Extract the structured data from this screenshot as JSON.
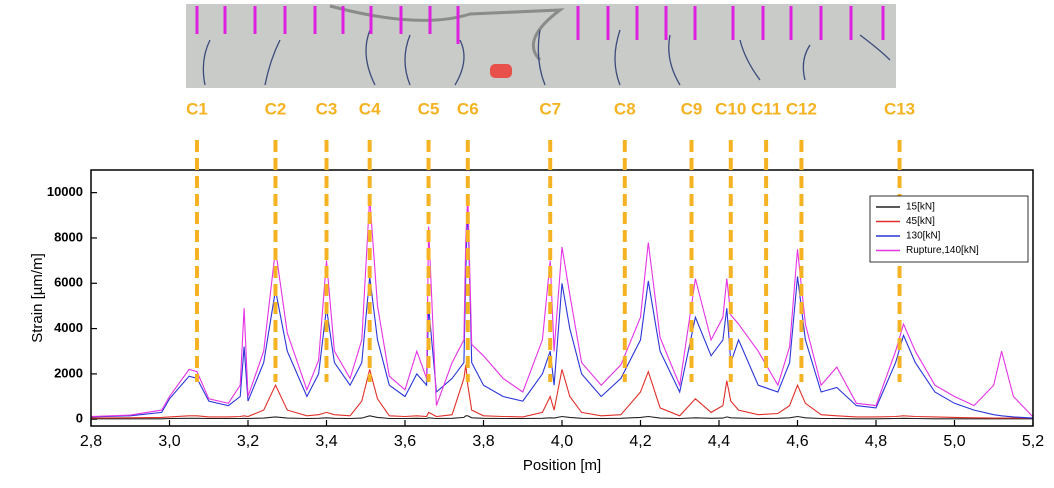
{
  "chart_data": {
    "type": "line",
    "xlabel": "Position [m]",
    "ylabel": "Strain [µm/m]",
    "xlim": [
      2.8,
      5.2
    ],
    "ylim": [
      -300,
      11000
    ],
    "xticks": [
      {
        "value": 2.8,
        "label": "2,8"
      },
      {
        "value": 3.0,
        "label": "3,0"
      },
      {
        "value": 3.2,
        "label": "3,2"
      },
      {
        "value": 3.4,
        "label": "3,4"
      },
      {
        "value": 3.6,
        "label": "3,6"
      },
      {
        "value": 3.8,
        "label": "3,8"
      },
      {
        "value": 4.0,
        "label": "4,0"
      },
      {
        "value": 4.2,
        "label": "4,2"
      },
      {
        "value": 4.4,
        "label": "4,4"
      },
      {
        "value": 4.6,
        "label": "4,6"
      },
      {
        "value": 4.8,
        "label": "4,8"
      },
      {
        "value": 5.0,
        "label": "5,0"
      },
      {
        "value": 5.2,
        "label": "5,2"
      }
    ],
    "yticks": [
      0,
      2000,
      4000,
      6000,
      8000,
      10000
    ],
    "legend": "upper right",
    "x": [
      2.8,
      2.9,
      2.98,
      3.0,
      3.05,
      3.07,
      3.1,
      3.15,
      3.18,
      3.19,
      3.2,
      3.24,
      3.27,
      3.3,
      3.35,
      3.38,
      3.4,
      3.42,
      3.46,
      3.49,
      3.51,
      3.53,
      3.56,
      3.6,
      3.63,
      3.655,
      3.66,
      3.68,
      3.72,
      3.75,
      3.755,
      3.76,
      3.77,
      3.8,
      3.85,
      3.9,
      3.95,
      3.97,
      3.98,
      4.0,
      4.02,
      4.05,
      4.1,
      4.15,
      4.2,
      4.22,
      4.25,
      4.3,
      4.34,
      4.38,
      4.41,
      4.42,
      4.43,
      4.45,
      4.5,
      4.55,
      4.58,
      4.6,
      4.62,
      4.66,
      4.7,
      4.75,
      4.8,
      4.85,
      4.87,
      4.9,
      4.95,
      5.0,
      5.05,
      5.1,
      5.12,
      5.15,
      5.2
    ],
    "series": [
      {
        "name": "15[kN]",
        "color": "#222222",
        "values": [
          20,
          20,
          20,
          30,
          40,
          40,
          30,
          30,
          30,
          40,
          30,
          50,
          100,
          50,
          30,
          40,
          60,
          40,
          30,
          50,
          150,
          80,
          30,
          30,
          40,
          30,
          60,
          30,
          40,
          80,
          150,
          150,
          60,
          40,
          30,
          30,
          40,
          60,
          50,
          120,
          80,
          40,
          30,
          40,
          80,
          120,
          50,
          30,
          60,
          40,
          50,
          100,
          60,
          50,
          30,
          40,
          60,
          120,
          60,
          30,
          30,
          20,
          20,
          30,
          40,
          30,
          20,
          20,
          20,
          20,
          20,
          20,
          20
        ]
      },
      {
        "name": "45[kN]",
        "color": "#e0302a",
        "values": [
          50,
          60,
          80,
          100,
          150,
          150,
          100,
          100,
          120,
          150,
          120,
          400,
          1500,
          400,
          150,
          200,
          300,
          200,
          150,
          800,
          2200,
          900,
          150,
          120,
          150,
          120,
          300,
          120,
          200,
          1800,
          2400,
          1500,
          400,
          150,
          120,
          100,
          300,
          1000,
          400,
          2200,
          1000,
          300,
          150,
          200,
          1200,
          2100,
          500,
          150,
          900,
          300,
          600,
          1700,
          800,
          400,
          200,
          250,
          600,
          1500,
          700,
          200,
          150,
          100,
          100,
          120,
          150,
          120,
          100,
          80,
          60,
          50,
          50,
          50,
          50
        ]
      },
      {
        "name": "130[kN]",
        "color": "#2b35d8",
        "values": [
          100,
          150,
          300,
          900,
          1900,
          1800,
          800,
          600,
          1000,
          3200,
          800,
          2500,
          5700,
          3000,
          1000,
          2000,
          4900,
          2500,
          1500,
          2500,
          6300,
          3500,
          1500,
          1000,
          2000,
          1500,
          5000,
          1200,
          1800,
          2500,
          6500,
          9500,
          2500,
          1500,
          1000,
          800,
          2000,
          3000,
          1500,
          6000,
          4000,
          2000,
          1000,
          1800,
          3500,
          6100,
          3000,
          1200,
          4500,
          2800,
          3500,
          4900,
          2500,
          3500,
          1500,
          1200,
          2500,
          6300,
          3500,
          1200,
          1400,
          600,
          500,
          2500,
          3700,
          2500,
          1200,
          700,
          400,
          200,
          150,
          100,
          50
        ]
      },
      {
        "name": "Rupture,140[kN]",
        "color": "#e533e5",
        "values": [
          120,
          180,
          400,
          1000,
          2200,
          2100,
          900,
          700,
          1500,
          4900,
          1000,
          3000,
          7500,
          3800,
          1300,
          2600,
          7000,
          3000,
          1800,
          3500,
          9800,
          5000,
          1900,
          1300,
          3000,
          1800,
          8500,
          600,
          2500,
          3500,
          8000,
          9900,
          3300,
          2800,
          1800,
          1200,
          3500,
          7000,
          3000,
          7600,
          5500,
          2500,
          1500,
          2400,
          4500,
          7800,
          3600,
          1500,
          6200,
          3500,
          4500,
          6200,
          4600,
          4200,
          3000,
          1500,
          3200,
          7500,
          4200,
          1500,
          2300,
          700,
          600,
          3000,
          4200,
          3000,
          1500,
          1000,
          600,
          1500,
          3000,
          1000,
          100
        ]
      }
    ],
    "cracks": [
      {
        "label": "C1",
        "x": 3.07
      },
      {
        "label": "C2",
        "x": 3.27
      },
      {
        "label": "C3",
        "x": 3.4
      },
      {
        "label": "C4",
        "x": 3.51
      },
      {
        "label": "C5",
        "x": 3.66
      },
      {
        "label": "C6",
        "x": 3.76
      },
      {
        "label": "C7",
        "x": 3.97
      },
      {
        "label": "C8",
        "x": 4.16
      },
      {
        "label": "C9",
        "x": 4.33
      },
      {
        "label": "C10",
        "x": 4.43
      },
      {
        "label": "C11",
        "x": 4.52
      },
      {
        "label": "C12",
        "x": 4.61
      },
      {
        "label": "C13",
        "x": 4.86
      }
    ],
    "crack_color": "#f5b323"
  }
}
